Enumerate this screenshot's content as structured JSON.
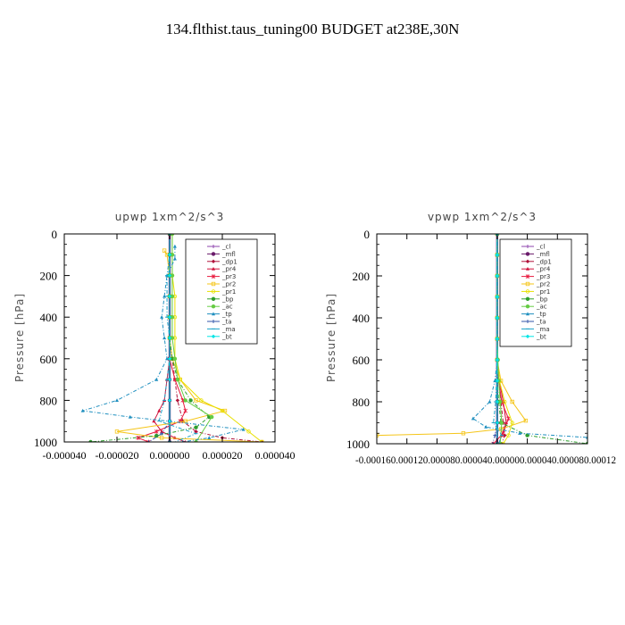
{
  "figure_title": "134.flthist.taus_tuning00  BUDGET at238E,30N",
  "colors": {
    "_cl": "#8e44ad",
    "_mfl": "#6a1b6a",
    "_dp1": "#b0123a",
    "_pr4": "#d0103a",
    "_pr3": "#e8183c",
    "_pr2": "#f5c518",
    "_pr1": "#e8e000",
    "_bp": "#2e9e2e",
    "_ac": "#66cc44",
    "_tp": "#1f8fbf",
    "_ta": "#3355aa",
    "_ma": "#1aa3c8",
    "_bt": "#00e5e5"
  },
  "chart_data": [
    {
      "type": "line",
      "title": "upwp   1xm^2/s^3",
      "ylabel": "Pressure [hPa]",
      "xlabel": "",
      "xlim": [
        -4e-05,
        4e-05
      ],
      "ylim": [
        1000,
        0
      ],
      "y_ticks": [
        0,
        200,
        400,
        600,
        800,
        1000
      ],
      "x_tick_labels": [
        "-0.000040",
        "-0.000020",
        "0.000000",
        "0.000020",
        "0.000040"
      ],
      "x_ticks": [
        -4e-05,
        -2e-05,
        0,
        2e-05,
        4e-05
      ],
      "legend": [
        "_cl",
        "_mfl",
        "_dp1",
        "_pr4",
        "_pr3",
        "_pr2",
        "_pr1",
        "_bp",
        "_ac",
        "_tp",
        "_ta",
        "_ma",
        "_bt"
      ],
      "legend_loc": "upper right",
      "series": [
        {
          "name": "_cl",
          "x": [
            0,
            0,
            0,
            0,
            0,
            0,
            0,
            0,
            0,
            0,
            0
          ],
          "y": [
            0,
            100,
            200,
            300,
            400,
            500,
            600,
            700,
            800,
            900,
            1000
          ]
        },
        {
          "name": "_mfl",
          "x": [
            0,
            0,
            0,
            0,
            0,
            0,
            0,
            0,
            0,
            0,
            0
          ],
          "y": [
            0,
            100,
            200,
            300,
            400,
            500,
            600,
            700,
            800,
            900,
            1000
          ]
        },
        {
          "name": "_dp1",
          "x": [
            0,
            0,
            0,
            0,
            0,
            0,
            1e-06,
            2e-06,
            3e-06,
            5e-06,
            1e-05,
            2e-05,
            3.5e-05
          ],
          "y": [
            0,
            100,
            200,
            300,
            400,
            500,
            600,
            700,
            800,
            900,
            950,
            980,
            1000
          ]
        },
        {
          "name": "_pr4",
          "x": [
            0,
            0,
            0,
            0,
            0,
            0,
            0,
            -1e-06,
            -2e-06,
            -4e-06,
            -6e-06,
            -3e-06,
            2e-06,
            6e-06
          ],
          "y": [
            0,
            100,
            200,
            300,
            400,
            500,
            600,
            700,
            800,
            850,
            900,
            950,
            980,
            1000
          ]
        },
        {
          "name": "_pr3",
          "x": [
            0,
            0,
            0,
            0,
            0,
            0,
            0,
            2e-06,
            5e-06,
            6e-06,
            4e-06,
            -5e-06,
            -1.2e-05,
            -8e-06
          ],
          "y": [
            0,
            100,
            200,
            300,
            400,
            500,
            600,
            700,
            800,
            850,
            900,
            950,
            980,
            1000
          ]
        },
        {
          "name": "_pr2",
          "x": [
            -2e-06,
            -1e-06,
            0,
            0,
            0,
            0,
            1e-06,
            4e-06,
            1e-05,
            2.1e-05,
            6e-06,
            -2e-05,
            -3e-06,
            3.5e-05
          ],
          "y": [
            80,
            100,
            200,
            300,
            400,
            500,
            600,
            700,
            800,
            850,
            900,
            950,
            980,
            1000
          ]
        },
        {
          "name": "_pr1",
          "x": [
            1e-06,
            1e-06,
            1e-06,
            2e-06,
            2e-06,
            2e-06,
            2e-06,
            4e-06,
            1.2e-05,
            2e-05,
            3e-05,
            3.5e-05
          ],
          "y": [
            0,
            100,
            200,
            300,
            400,
            500,
            600,
            700,
            800,
            850,
            950,
            1000
          ]
        },
        {
          "name": "_bp",
          "x": [
            0,
            0,
            0,
            0,
            0,
            0,
            1e-06,
            3e-06,
            8e-06,
            1.5e-05,
            1e-05,
            -5e-06,
            -3e-05
          ],
          "y": [
            0,
            100,
            200,
            300,
            400,
            500,
            600,
            700,
            800,
            880,
            930,
            970,
            1000
          ]
        },
        {
          "name": "_ac",
          "x": [
            1e-06,
            1e-06,
            1e-06,
            1e-06,
            1e-06,
            1e-06,
            2e-06,
            3e-06,
            6e-06,
            1.6e-05,
            1e-05
          ],
          "y": [
            0,
            100,
            200,
            300,
            400,
            500,
            600,
            700,
            800,
            880,
            1000
          ]
        },
        {
          "name": "_tp",
          "x": [
            2e-06,
            2e-06,
            -1e-06,
            -2e-06,
            -3e-06,
            -2e-06,
            -1e-06,
            -5e-06,
            -2e-05,
            -3.3e-05,
            -1.5e-05,
            2.8e-05,
            1.5e-05,
            5e-06
          ],
          "y": [
            60,
            120,
            200,
            300,
            400,
            500,
            600,
            700,
            800,
            850,
            880,
            940,
            980,
            1000
          ]
        },
        {
          "name": "_ta",
          "x": [
            0,
            0,
            0,
            0,
            0,
            0,
            0,
            0,
            0,
            0,
            -3e-06,
            -8e-06
          ],
          "y": [
            0,
            100,
            200,
            300,
            400,
            500,
            600,
            700,
            800,
            900,
            960,
            1000
          ]
        },
        {
          "name": "_ma",
          "x": [
            0,
            0,
            -1e-06,
            -1e-06,
            -1e-06,
            0,
            0,
            -1e-06,
            -2e-06,
            -4e-06,
            1e-05,
            2e-06
          ],
          "y": [
            0,
            100,
            200,
            300,
            400,
            500,
            600,
            700,
            800,
            900,
            960,
            1000
          ]
        },
        {
          "name": "_bt",
          "x": [
            0,
            0,
            0,
            0,
            0,
            0,
            0,
            0,
            0,
            0,
            0
          ],
          "y": [
            0,
            100,
            200,
            300,
            400,
            500,
            600,
            700,
            800,
            900,
            1000
          ]
        }
      ]
    },
    {
      "type": "line",
      "title": "vpwp   1xm^2/s^3",
      "ylabel": "Pressure [hPa]",
      "xlabel": "",
      "xlim": [
        -0.00016,
        0.00012
      ],
      "ylim": [
        1000,
        0
      ],
      "y_ticks": [
        0,
        200,
        400,
        600,
        800,
        1000
      ],
      "x_tick_labels": [
        "-0.000160",
        "-0.000120",
        "-0.000080",
        "-0.000040",
        "0.000000",
        "0.000040",
        "0.000080",
        "0.000120"
      ],
      "x_ticks": [
        -0.00016,
        -0.00012,
        -8e-05,
        -4e-05,
        0,
        4e-05,
        8e-05,
        0.00012
      ],
      "x_tick_labels_visible": "-0.000160.000120.000080.000040.000000.000040.000080.00012",
      "legend": [
        "_cl",
        "_mfl",
        "_dp1",
        "_pr4",
        "_pr3",
        "_pr2",
        "_pr1",
        "_bp",
        "_ac",
        "_tp",
        "_ta",
        "_ma",
        "_bt"
      ],
      "legend_loc": "upper right",
      "series": [
        {
          "name": "_cl",
          "x": [
            0,
            0,
            0,
            0,
            0,
            0,
            0,
            0,
            0,
            0,
            0
          ],
          "y": [
            0,
            100,
            200,
            300,
            400,
            500,
            600,
            700,
            800,
            900,
            1000
          ]
        },
        {
          "name": "_mfl",
          "x": [
            0,
            0,
            0,
            0,
            0,
            0,
            0,
            0,
            0,
            0,
            0
          ],
          "y": [
            0,
            100,
            200,
            300,
            400,
            500,
            600,
            700,
            800,
            900,
            1000
          ]
        },
        {
          "name": "_dp1",
          "x": [
            0,
            0,
            0,
            0,
            0,
            0,
            0,
            2e-06,
            5e-06,
            8e-06,
            1e-05,
            6e-06
          ],
          "y": [
            0,
            100,
            200,
            300,
            400,
            500,
            600,
            700,
            800,
            900,
            960,
            1000
          ]
        },
        {
          "name": "_pr4",
          "x": [
            0,
            0,
            0,
            0,
            0,
            0,
            0,
            3e-06,
            8e-06,
            1.2e-05,
            6e-06,
            2e-06
          ],
          "y": [
            0,
            100,
            200,
            300,
            400,
            500,
            600,
            700,
            800,
            900,
            960,
            1000
          ]
        },
        {
          "name": "_pr3",
          "x": [
            0,
            0,
            0,
            0,
            0,
            0,
            0,
            2e-06,
            6e-06,
            1.5e-05,
            8e-06,
            -5e-06
          ],
          "y": [
            0,
            100,
            200,
            300,
            400,
            500,
            600,
            700,
            800,
            880,
            950,
            1000
          ]
        },
        {
          "name": "_pr2",
          "x": [
            0,
            0,
            0,
            0,
            0,
            0,
            0,
            5e-06,
            2e-05,
            3.8e-05,
            5e-06,
            -4.5e-05,
            -0.00016
          ],
          "y": [
            0,
            100,
            200,
            300,
            400,
            500,
            600,
            700,
            800,
            890,
            930,
            950,
            960
          ]
        },
        {
          "name": "_pr1",
          "x": [
            0,
            0,
            0,
            0,
            0,
            0,
            0,
            3e-06,
            1e-05,
            2e-05,
            1.5e-05,
            8e-06
          ],
          "y": [
            0,
            100,
            200,
            300,
            400,
            500,
            600,
            700,
            800,
            900,
            960,
            1000
          ]
        },
        {
          "name": "_bp",
          "x": [
            0,
            0,
            0,
            0,
            0,
            0,
            0,
            0,
            2e-06,
            5e-06,
            4e-05,
            0.00012
          ],
          "y": [
            0,
            100,
            200,
            300,
            400,
            500,
            600,
            700,
            800,
            900,
            960,
            1000
          ]
        },
        {
          "name": "_ac",
          "x": [
            0,
            0,
            0,
            0,
            0,
            0,
            1e-06,
            2e-06,
            4e-06,
            6e-06,
            4e-06
          ],
          "y": [
            0,
            100,
            200,
            300,
            400,
            500,
            600,
            700,
            800,
            900,
            1000
          ]
        },
        {
          "name": "_tp",
          "x": [
            0,
            0,
            0,
            0,
            0,
            0,
            0,
            -3e-06,
            -1e-05,
            -3.2e-05,
            -1.5e-05,
            3e-05,
            0.00012
          ],
          "y": [
            0,
            100,
            200,
            300,
            400,
            500,
            600,
            700,
            800,
            880,
            920,
            950,
            970
          ]
        },
        {
          "name": "_ta",
          "x": [
            0,
            0,
            0,
            0,
            0,
            0,
            0,
            0,
            0,
            0,
            -3e-06,
            -6e-06
          ],
          "y": [
            0,
            100,
            200,
            300,
            400,
            500,
            600,
            700,
            800,
            900,
            960,
            1000
          ]
        },
        {
          "name": "_ma",
          "x": [
            0,
            0,
            0,
            0,
            0,
            0,
            0,
            -1e-06,
            -2e-06,
            -5e-06,
            6e-06,
            2e-06
          ],
          "y": [
            0,
            100,
            200,
            300,
            400,
            500,
            600,
            700,
            800,
            900,
            960,
            1000
          ]
        },
        {
          "name": "_bt",
          "x": [
            0,
            0,
            0,
            0,
            0,
            0,
            0,
            0,
            0,
            0,
            0
          ],
          "y": [
            0,
            100,
            200,
            300,
            400,
            500,
            600,
            700,
            800,
            900,
            1000
          ]
        }
      ]
    }
  ]
}
